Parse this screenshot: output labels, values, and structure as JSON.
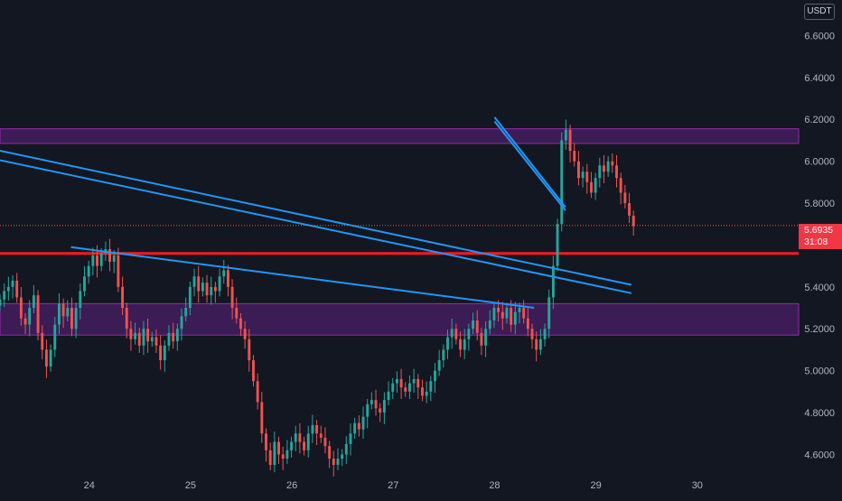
{
  "currency_badge": "USDT",
  "price_tag": {
    "price": "5.6935",
    "countdown": "31:08"
  },
  "colors": {
    "background": "#131722",
    "up": "#26a69a",
    "down": "#ef5350",
    "trendline": "#2196f3",
    "support": "#ff1a1a",
    "zone_fill": "#4a1f66",
    "zone_border": "#9c27b0",
    "axis_text": "#b2b5be"
  },
  "chart_data": {
    "type": "candlestick",
    "x_tick_labels": [
      "24",
      "25",
      "26",
      "27",
      "28",
      "29",
      "30"
    ],
    "x_ticks": [
      24,
      25,
      26,
      27,
      28,
      29,
      30
    ],
    "y_tick_labels": [
      "4.6000",
      "4.8000",
      "5.0000",
      "5.2000",
      "5.4000",
      "5.6000",
      "5.8000",
      "6.0000",
      "6.2000",
      "6.4000",
      "6.6000"
    ],
    "y_ticks": [
      4.6,
      4.8,
      5.0,
      5.2,
      5.4,
      5.6,
      5.8,
      6.0,
      6.2,
      6.4,
      6.6
    ],
    "xlim": [
      23.12,
      31.0
    ],
    "ylim": [
      4.52,
      6.77
    ],
    "last_price": 5.6935,
    "support_line": 5.56,
    "zones": [
      {
        "low": 6.085,
        "high": 6.155
      },
      {
        "low": 5.17,
        "high": 5.32
      }
    ],
    "trendlines": [
      {
        "x1": 23.12,
        "y1": 6.05,
        "x2": 29.35,
        "y2": 5.41
      },
      {
        "x1": 23.12,
        "y1": 6.005,
        "x2": 29.35,
        "y2": 5.37
      },
      {
        "x1": 23.82,
        "y1": 5.59,
        "x2": 28.39,
        "y2": 5.3
      },
      {
        "x1": 28.0,
        "y1": 6.21,
        "x2": 28.7,
        "y2": 5.78
      },
      {
        "x1": 28.0,
        "y1": 6.19,
        "x2": 28.7,
        "y2": 5.765
      }
    ],
    "candles": {
      "start_x": 23.12,
      "step": 0.04167,
      "close": [
        5.34,
        5.38,
        5.4,
        5.43,
        5.35,
        5.25,
        5.22,
        5.3,
        5.36,
        5.18,
        5.1,
        5.02,
        5.1,
        5.22,
        5.32,
        5.26,
        5.3,
        5.2,
        5.3,
        5.38,
        5.45,
        5.5,
        5.55,
        5.5,
        5.56,
        5.58,
        5.52,
        5.55,
        5.4,
        5.3,
        5.2,
        5.15,
        5.18,
        5.12,
        5.2,
        5.14,
        5.16,
        5.12,
        5.05,
        5.12,
        5.18,
        5.14,
        5.2,
        5.26,
        5.3,
        5.4,
        5.45,
        5.38,
        5.42,
        5.36,
        5.4,
        5.38,
        5.45,
        5.48,
        5.4,
        5.3,
        5.25,
        5.2,
        5.15,
        5.05,
        4.95,
        4.85,
        4.7,
        4.62,
        4.55,
        4.66,
        4.6,
        4.58,
        4.62,
        4.66,
        4.7,
        4.66,
        4.62,
        4.7,
        4.74,
        4.7,
        4.68,
        4.64,
        4.58,
        4.55,
        4.58,
        4.6,
        4.65,
        4.7,
        4.75,
        4.72,
        4.78,
        4.84,
        4.86,
        4.82,
        4.8,
        4.86,
        4.9,
        4.94,
        4.96,
        4.92,
        4.9,
        4.94,
        4.96,
        4.92,
        4.88,
        4.9,
        4.95,
        5.0,
        5.05,
        5.1,
        5.16,
        5.2,
        5.15,
        5.1,
        5.15,
        5.2,
        5.24,
        5.18,
        5.12,
        5.2,
        5.24,
        5.3,
        5.28,
        5.25,
        5.3,
        5.22,
        5.28,
        5.3,
        5.25,
        5.2,
        5.15,
        5.1,
        5.15,
        5.2,
        5.35,
        5.5,
        5.7,
        6.1,
        6.15,
        6.05,
        6.0,
        5.92,
        5.95,
        5.9,
        5.85,
        5.92,
        5.98,
        5.95,
        6.0,
        5.98,
        5.92,
        5.85,
        5.8,
        5.74,
        5.69
      ]
    }
  }
}
